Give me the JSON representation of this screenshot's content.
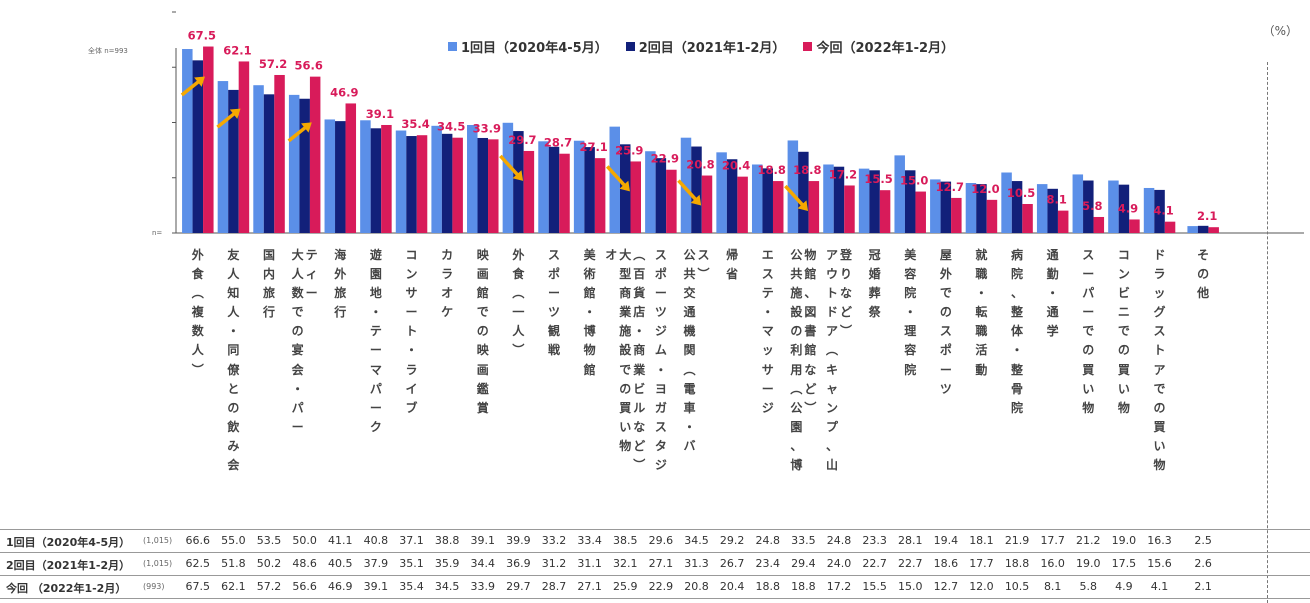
{
  "chart_data": {
    "type": "bar",
    "unit_label": "（%）",
    "total_label": "全体 n=993",
    "zero_label": "n=",
    "ylim": [
      0,
      80
    ],
    "categories": [
      "外食（複数人）",
      "友人知人・同僚との飲み会",
      "国内旅行",
      "大人数での宴会・パーティー",
      "海外旅行",
      "遊園地・テーマパーク",
      "コンサート・ライブ",
      "カラオケ",
      "映画館での映画鑑賞",
      "外食（一人）",
      "スポーツ観戦",
      "美術館・博物館",
      "大型商業施設での買い物（百貨店・商業ビルなど）",
      "スポーツジム・ヨガスタジオ",
      "公共交通機関（電車・バス）",
      "帰省",
      "エステ・マッサージ",
      "公共施設の利用（公園、博物館、図書館など）",
      "アウトドア（キャンプ、山登りなど）",
      "冠婚葬祭",
      "美容院・理容院",
      "屋外でのスポーツ",
      "就職・転職活動",
      "病院、整体・整骨院",
      "通勤・通学",
      "スーパーでの買い物",
      "コンビニでの買い物",
      "ドラッグストアでの買い物",
      "その他"
    ],
    "series": [
      {
        "name": "1回目（2020年4-5月）",
        "color": "#5b8fe8",
        "n": "(1,015)",
        "values": [
          66.6,
          55.0,
          53.5,
          50.0,
          41.1,
          40.8,
          37.1,
          38.8,
          39.1,
          39.9,
          33.2,
          33.4,
          38.5,
          29.6,
          34.5,
          29.2,
          24.8,
          33.5,
          24.8,
          23.3,
          28.1,
          19.4,
          18.1,
          21.9,
          17.7,
          21.2,
          19.0,
          16.3,
          2.5
        ]
      },
      {
        "name": "2回目（2021年1-2月）",
        "color": "#12207a",
        "n": "(1,015)",
        "values": [
          62.5,
          51.8,
          50.2,
          48.6,
          40.5,
          37.9,
          35.1,
          35.9,
          34.4,
          36.9,
          31.2,
          31.1,
          32.1,
          27.1,
          31.3,
          26.7,
          23.4,
          29.4,
          24.0,
          22.7,
          22.7,
          18.6,
          17.7,
          18.8,
          16.0,
          19.0,
          17.5,
          15.6,
          2.6
        ]
      },
      {
        "name": "今回（2022年1-2月）",
        "color": "#d81b5a",
        "n": "(993)",
        "values": [
          67.5,
          62.1,
          57.2,
          56.6,
          46.9,
          39.1,
          35.4,
          34.5,
          33.9,
          29.7,
          28.7,
          27.1,
          25.9,
          22.9,
          20.8,
          20.4,
          18.8,
          18.8,
          17.2,
          15.5,
          15.0,
          12.7,
          12.0,
          10.5,
          8.1,
          5.8,
          4.9,
          4.1,
          2.1
        ]
      }
    ],
    "data_labels_series": "今回（2022年1-2月）",
    "arrows_up_at": [
      "外食（複数人）",
      "友人知人・同僚との飲み会",
      "大人数での宴会・パーティー"
    ],
    "arrows_down_at": [
      "外食（一人）",
      "大型商業施設での買い物（百貨店・商業ビルなど）",
      "公共交通機関（電車・バス）",
      "公共施設の利用（公園、博物館、図書館など）"
    ],
    "arrow_color": "#f5a800"
  },
  "axis_labels": [
    [
      "外",
      "食",
      "︵",
      "複",
      "数",
      "人",
      "︶"
    ],
    [
      "友",
      "人",
      "知",
      "人",
      "・",
      "同",
      "僚",
      "と",
      "の",
      "飲",
      "み",
      "会"
    ],
    [
      "国",
      "内",
      "旅",
      "行"
    ],
    [
      [
        "テ",
        "ィ",
        "ー"
      ],
      [
        "大",
        "人",
        "数",
        "で",
        "の",
        "宴",
        "会",
        "・",
        "パ",
        "ー"
      ]
    ],
    [
      "海",
      "外",
      "旅",
      "行"
    ],
    [
      "遊",
      "園",
      "地",
      "・",
      "テ",
      "ー",
      "マ",
      "パ",
      "ー",
      "ク"
    ],
    [
      "コ",
      "ン",
      "サ",
      "ー",
      "ト",
      "・",
      "ラ",
      "イ",
      "ブ"
    ],
    [
      "カ",
      "ラ",
      "オ",
      "ケ"
    ],
    [
      "映",
      "画",
      "館",
      "で",
      "の",
      "映",
      "画",
      "鑑",
      "賞"
    ],
    [
      "外",
      "食",
      "︵",
      "一",
      "人",
      "︶"
    ],
    [
      "ス",
      "ポ",
      "ー",
      "ツ",
      "観",
      "戦"
    ],
    [
      "美",
      "術",
      "館",
      "・",
      "博",
      "物",
      "館"
    ],
    [
      [
        "︵",
        "百",
        "貨",
        "店",
        "・",
        "商",
        "業",
        "ビ",
        "ル",
        "な",
        "ど",
        "︶"
      ],
      [
        "大",
        "型",
        "商",
        "業",
        "施",
        "設",
        "で",
        "の",
        "買",
        "い",
        "物"
      ],
      [
        "オ"
      ]
    ],
    [
      "ス",
      "ポ",
      "ー",
      "ツ",
      "ジ",
      "ム",
      "・",
      "ヨ",
      "ガ",
      "ス",
      "タ",
      "ジ"
    ],
    [
      [
        "ス",
        "︶"
      ],
      [
        "公",
        "共",
        "交",
        "通",
        "機",
        "関",
        "︵",
        "電",
        "車",
        "・",
        "バ"
      ]
    ],
    [
      "帰",
      "省"
    ],
    [
      "エ",
      "ス",
      "テ",
      "・",
      "マ",
      "ッ",
      "サ",
      "ー",
      "ジ"
    ],
    [
      [
        "物",
        "館",
        "、",
        "図",
        "書",
        "館",
        "な",
        "ど",
        "︶"
      ],
      [
        "公",
        "共",
        "施",
        "設",
        "の",
        "利",
        "用",
        "︵",
        "公",
        "園",
        "、",
        "博"
      ]
    ],
    [
      [
        "登",
        "り",
        "な",
        "ど",
        "︶"
      ],
      [
        "ア",
        "ウ",
        "ト",
        "ド",
        "ア",
        "︵",
        "キ",
        "ャ",
        "ン",
        "プ",
        "、",
        "山"
      ]
    ],
    [
      "冠",
      "婚",
      "葬",
      "祭"
    ],
    [
      "美",
      "容",
      "院",
      "・",
      "理",
      "容",
      "院"
    ],
    [
      "屋",
      "外",
      "で",
      "の",
      "ス",
      "ポ",
      "ー",
      "ツ"
    ],
    [
      "就",
      "職",
      "・",
      "転",
      "職",
      "活",
      "動"
    ],
    [
      "病",
      "院",
      "、",
      "整",
      "体",
      "・",
      "整",
      "骨",
      "院"
    ],
    [
      "通",
      "勤",
      "・",
      "通",
      "学"
    ],
    [
      "ス",
      "ー",
      "パ",
      "ー",
      "で",
      "の",
      "買",
      "い",
      "物"
    ],
    [
      "コ",
      "ン",
      "ビ",
      "ニ",
      "で",
      "の",
      "買",
      "い",
      "物"
    ],
    [
      "ド",
      "ラ",
      "ッ",
      "グ",
      "ス",
      "ト",
      "ア",
      "で",
      "の",
      "買",
      "い",
      "物"
    ],
    [
      "そ",
      "の",
      "他"
    ]
  ],
  "table": {
    "rows": [
      {
        "label": "1回目（2020年4-5月）",
        "n": "(1,015)"
      },
      {
        "label": "2回目（2021年1-2月）",
        "n": "(1,015)"
      },
      {
        "label": "今回 （2022年1-2月）",
        "n": "(993)"
      }
    ]
  },
  "legend": [
    {
      "label": "1回目（2020年4-5月）",
      "color": "#5b8fe8"
    },
    {
      "label": "2回目（2021年1-2月）",
      "color": "#12207a"
    },
    {
      "label": "今回（2022年1-2月）",
      "color": "#d81b5a"
    }
  ]
}
